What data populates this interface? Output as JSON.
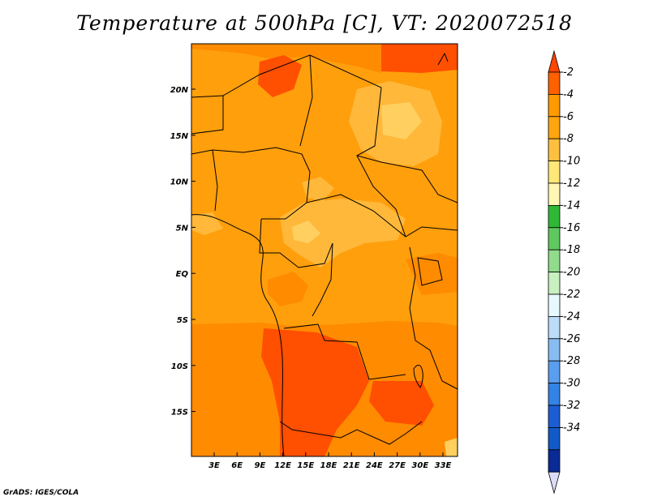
{
  "title": "Temperature at 500hPa [C], VT: 2020072518",
  "footer": "GrADS: IGES/COLA",
  "map": {
    "lat_labels": [
      "20N",
      "15N",
      "10N",
      "5N",
      "EQ",
      "5S",
      "10S",
      "15S"
    ],
    "lon_labels": [
      "3E",
      "6E",
      "9E",
      "12E",
      "15E",
      "18E",
      "21E",
      "24E",
      "27E",
      "30E",
      "33E"
    ]
  },
  "colorbar": {
    "labels": [
      "-2",
      "-4",
      "-6",
      "-8",
      "-10",
      "-12",
      "-14",
      "-16",
      "-18",
      "-20",
      "-22",
      "-24",
      "-26",
      "-28",
      "-30",
      "-32",
      "-34"
    ],
    "colors": [
      "#ff6000",
      "#ff9b00",
      "#ffa60f",
      "#ffc040",
      "#ffe878",
      "#fff7b4",
      "#2fb835",
      "#5ec95f",
      "#90dc8c",
      "#c8f0c0",
      "#e8f8ff",
      "#bcdcf8",
      "#88bdf2",
      "#5a9ef0",
      "#3383e6",
      "#1c5ed2",
      "#125ac8",
      "#0a2a96"
    ],
    "top_arrow_color": "#ff4500",
    "bottom_arrow_color": "#dcdcf8",
    "bottom_fill_color": "#1a1a7a"
  },
  "field_colors": {
    "background": "#ff9f0c",
    "warm": "#ff8b00",
    "hot": "#ff4f00",
    "cool": "#ffb83a",
    "cooler": "#ffd060"
  }
}
